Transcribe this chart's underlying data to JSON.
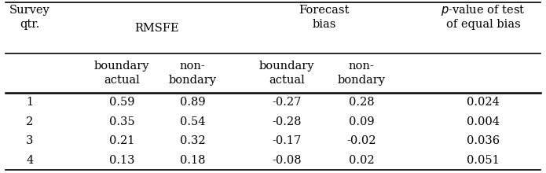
{
  "rows": [
    [
      "1",
      "0.59",
      "0.89",
      "-0.27",
      "0.28",
      "0.024"
    ],
    [
      "2",
      "0.35",
      "0.54",
      "-0.28",
      "0.09",
      "0.004"
    ],
    [
      "3",
      "0.21",
      "0.32",
      "-0.17",
      "-0.02",
      "0.036"
    ],
    [
      "4",
      "0.13",
      "0.18",
      "-0.08",
      "0.02",
      "0.051"
    ]
  ],
  "bg_color": "white",
  "font_size": 10.5
}
